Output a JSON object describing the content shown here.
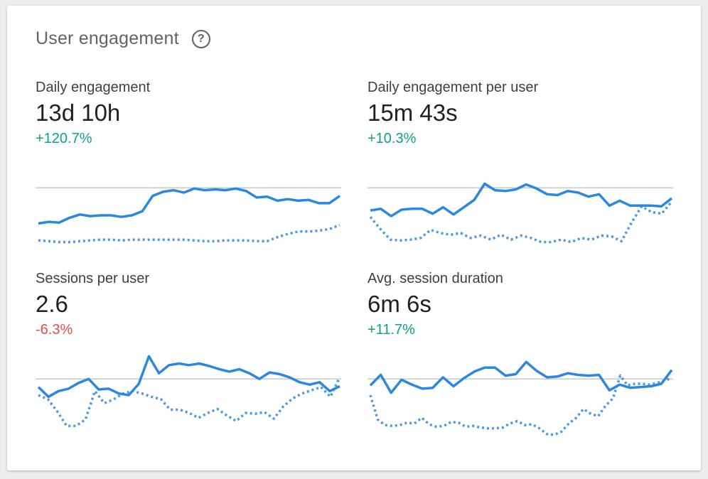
{
  "card": {
    "title": "User engagement",
    "help_icon": "help-circle-icon"
  },
  "colors": {
    "line": "#2b87e0",
    "baseline": "#c8c8c8",
    "positive": "#12a087",
    "negative": "#ea4c4c"
  },
  "metrics": [
    {
      "label": "Daily engagement",
      "value": "13d 10h",
      "change": "+120.7%",
      "change_sign": "positive"
    },
    {
      "label": "Daily engagement per user",
      "value": "15m 43s",
      "change": "+10.3%",
      "change_sign": "positive"
    },
    {
      "label": "Sessions per user",
      "value": "2.6",
      "change": "-6.3%",
      "change_sign": "negative"
    },
    {
      "label": "Avg. session duration",
      "value": "6m 6s",
      "change": "+11.7%",
      "change_sign": "positive"
    }
  ],
  "chart_data": [
    {
      "type": "line",
      "grid": false,
      "ylim": [
        0,
        100
      ],
      "baseline": 70,
      "series": [
        {
          "style": "solid",
          "values": [
            26,
            28,
            27,
            33,
            37,
            35,
            36,
            36,
            34,
            36,
            41,
            60,
            65,
            67,
            64,
            69,
            67,
            68,
            67,
            69,
            66,
            58,
            59,
            54,
            56,
            54,
            55,
            51,
            51,
            60
          ]
        },
        {
          "style": "dotted",
          "values": [
            5,
            4,
            3,
            3,
            4,
            5,
            6,
            6,
            5,
            6,
            6,
            6,
            6,
            6,
            6,
            5,
            4,
            4,
            5,
            5,
            5,
            4,
            4,
            9,
            13,
            16,
            16,
            17,
            19,
            24
          ]
        }
      ]
    },
    {
      "type": "line",
      "grid": false,
      "ylim": [
        0,
        100
      ],
      "baseline": 70,
      "series": [
        {
          "style": "solid",
          "values": [
            42,
            44,
            35,
            43,
            44,
            44,
            38,
            46,
            37,
            46,
            55,
            75,
            67,
            66,
            68,
            74,
            69,
            62,
            61,
            66,
            64,
            59,
            62,
            48,
            54,
            48,
            48,
            48,
            47,
            57
          ]
        },
        {
          "style": "dotted",
          "values": [
            34,
            19,
            6,
            5,
            6,
            8,
            18,
            14,
            12,
            14,
            8,
            11,
            6,
            12,
            6,
            11,
            8,
            3,
            3,
            6,
            3,
            8,
            6,
            11,
            10,
            4,
            27,
            47,
            40,
            38,
            53
          ]
        }
      ]
    },
    {
      "type": "line",
      "grid": false,
      "ylim": [
        0,
        100
      ],
      "baseline": 70,
      "series": [
        {
          "style": "solid",
          "values": [
            60,
            48,
            55,
            58,
            65,
            70,
            57,
            58,
            52,
            50,
            64,
            98,
            77,
            87,
            89,
            87,
            89,
            86,
            82,
            79,
            82,
            77,
            70,
            78,
            76,
            72,
            66,
            63,
            66,
            55,
            61
          ]
        },
        {
          "style": "dotted",
          "values": [
            50,
            45,
            30,
            12,
            12,
            20,
            55,
            40,
            45,
            52,
            55,
            52,
            48,
            45,
            32,
            32,
            28,
            22,
            28,
            33,
            25,
            18,
            28,
            27,
            29,
            21,
            36,
            46,
            52,
            56,
            60,
            48,
            72
          ]
        }
      ]
    },
    {
      "type": "line",
      "grid": false,
      "ylim": [
        0,
        100
      ],
      "baseline": 70,
      "series": [
        {
          "style": "solid",
          "values": [
            62,
            75,
            53,
            69,
            63,
            58,
            59,
            72,
            61,
            71,
            79,
            84,
            84,
            74,
            76,
            91,
            80,
            72,
            73,
            77,
            75,
            74,
            75,
            56,
            63,
            59,
            60,
            61,
            64,
            81
          ]
        },
        {
          "style": "dotted",
          "values": [
            50,
            20,
            13,
            12,
            13,
            16,
            15,
            22,
            14,
            11,
            12,
            17,
            16,
            11,
            12,
            10,
            9,
            9,
            10,
            15,
            18,
            13,
            14,
            9,
            2,
            1,
            5,
            15,
            22,
            33,
            27,
            24,
            37,
            46,
            74,
            62,
            64,
            64,
            63,
            65,
            68,
            71
          ]
        }
      ]
    }
  ]
}
